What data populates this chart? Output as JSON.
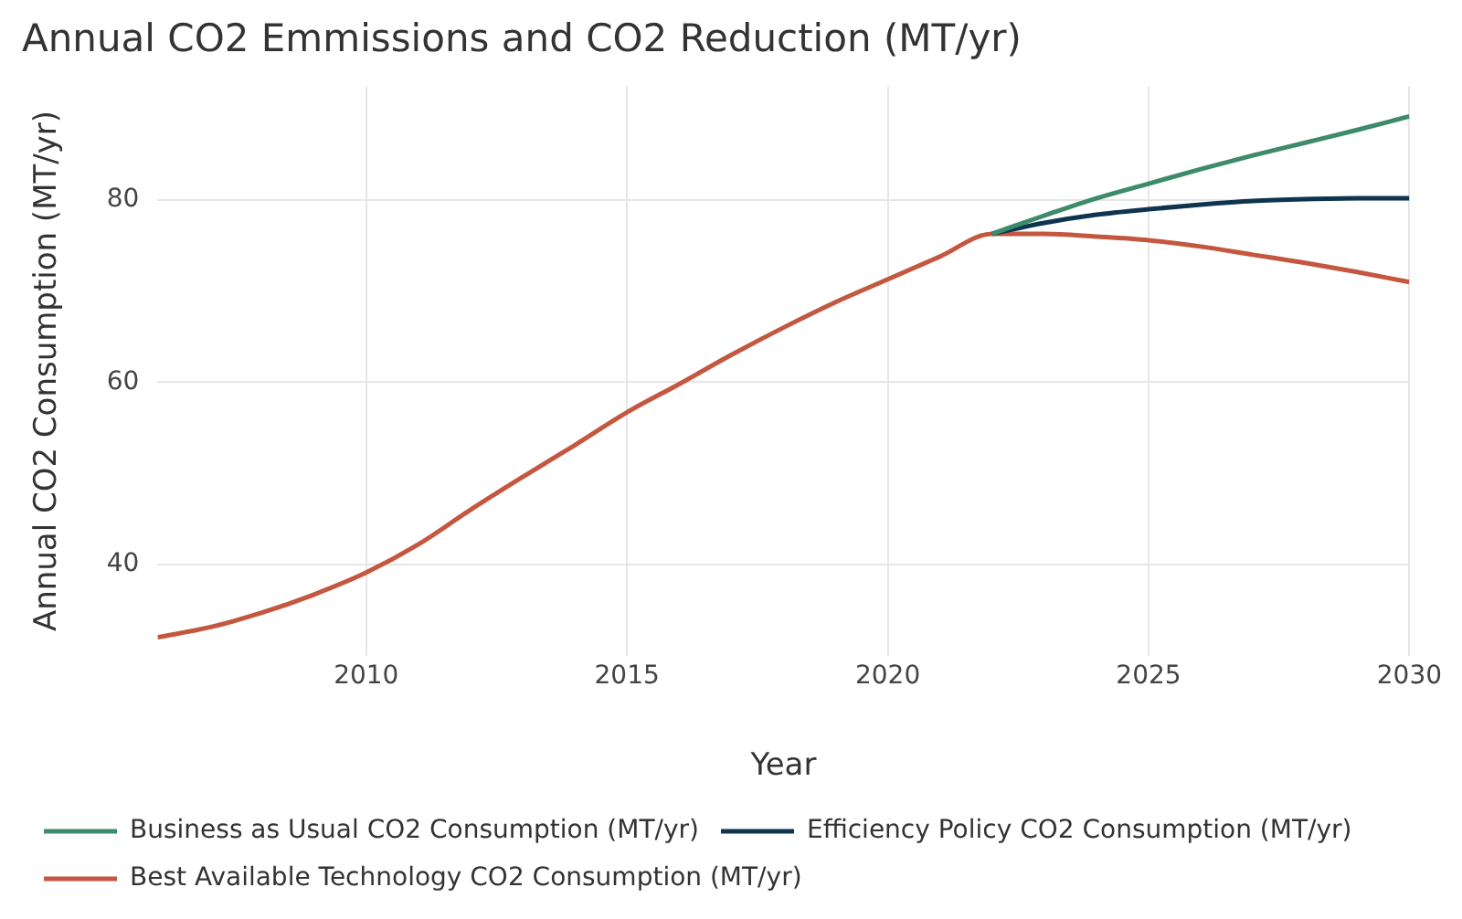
{
  "chart_data": {
    "type": "line",
    "title": "Annual CO2 Emmissions and CO2 Reduction (MT/yr)",
    "xlabel": "Year",
    "ylabel": "Annual CO2 Consumption (MT/yr)",
    "xlim": [
      2006,
      2030
    ],
    "xticks": [
      2010,
      2015,
      2020,
      2025,
      2030
    ],
    "ylim": [
      30,
      92.5
    ],
    "yticks": [
      40,
      60,
      80
    ],
    "grid": true,
    "legend": "bottom",
    "marker": "none",
    "line_style": "solid",
    "series": [
      {
        "name": "Business as Usual CO2 Consumption (MT/yr)",
        "color": "#3d8b6b",
        "x": [
          2022,
          2023,
          2024,
          2025,
          2026,
          2027,
          2028,
          2029,
          2030
        ],
        "values": [
          76.3,
          78.3,
          80.2,
          81.8,
          83.4,
          84.9,
          86.3,
          87.7,
          89.2
        ]
      },
      {
        "name": "Efficiency Policy CO2 Consumption (MT/yr)",
        "color": "#0e3550",
        "x": [
          2022,
          2023,
          2024,
          2025,
          2026,
          2027,
          2028,
          2029,
          2030
        ],
        "values": [
          76.3,
          77.5,
          78.4,
          79.0,
          79.5,
          79.9,
          80.1,
          80.2,
          80.2
        ]
      },
      {
        "name": "Best Available Technology CO2 Consumption (MT/yr)",
        "color": "#c4573f",
        "x": [
          2006,
          2007,
          2008,
          2009,
          2010,
          2011,
          2012,
          2013,
          2014,
          2015,
          2016,
          2017,
          2018,
          2019,
          2020,
          2021,
          2022,
          2023,
          2024,
          2025,
          2026,
          2027,
          2028,
          2029,
          2030
        ],
        "values": [
          32.0,
          33.1,
          34.7,
          36.7,
          39.1,
          42.2,
          46.0,
          49.6,
          53.1,
          56.7,
          59.8,
          63.0,
          66.0,
          68.8,
          71.3,
          73.8,
          76.3,
          76.3,
          76.0,
          75.6,
          74.9,
          74.0,
          73.1,
          72.1,
          71.0
        ]
      }
    ]
  }
}
